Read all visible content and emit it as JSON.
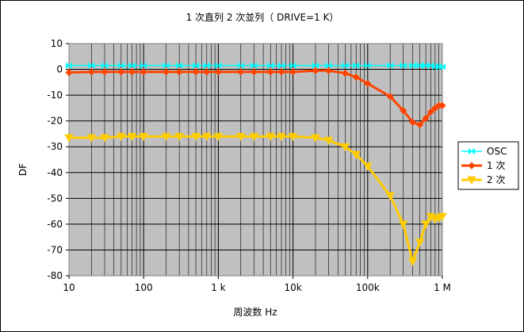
{
  "chart_data": {
    "type": "line",
    "title": "1 次直列 2 次並列（ DRIVE=1 K）",
    "xlabel": "周波数 Hz",
    "ylabel": "DF",
    "xscale": "log",
    "xlim": [
      10,
      1000000
    ],
    "ylim": [
      -80,
      10
    ],
    "yticks": [
      10,
      0,
      -10,
      -20,
      -30,
      -40,
      -50,
      -60,
      -70,
      -80
    ],
    "xticks": [
      {
        "value": 10,
        "label": "10"
      },
      {
        "value": 100,
        "label": "100"
      },
      {
        "value": 1000,
        "label": "1 k"
      },
      {
        "value": 10000,
        "label": "10k"
      },
      {
        "value": 100000,
        "label": "100k"
      },
      {
        "value": 1000000,
        "label": "1 M"
      }
    ],
    "grid": true,
    "plot_background": "#c0c0c0",
    "legend_position": "right",
    "series": [
      {
        "name": "OSC",
        "color": "#00ffff",
        "marker": "bowtie",
        "x": [
          10,
          20,
          30,
          50,
          70,
          100,
          200,
          300,
          500,
          700,
          1000,
          2000,
          3000,
          5000,
          7000,
          10000,
          20000,
          30000,
          50000,
          70000,
          100000,
          200000,
          300000,
          400000,
          500000,
          600000,
          700000,
          800000,
          900000,
          1000000
        ],
        "y": [
          1.5,
          1.5,
          1.5,
          1.5,
          1.5,
          1.5,
          1.5,
          1.5,
          1.5,
          1.5,
          1.5,
          1.5,
          1.5,
          1.5,
          1.5,
          1.5,
          1.5,
          1.5,
          1.5,
          1.5,
          1.5,
          1.5,
          1.5,
          1.5,
          1.5,
          1.5,
          1.5,
          1.2,
          1.0,
          1.0
        ]
      },
      {
        "name": "1 次",
        "color": "#ff4400",
        "marker": "diamond",
        "x": [
          10,
          20,
          30,
          50,
          70,
          100,
          200,
          300,
          500,
          700,
          1000,
          2000,
          3000,
          5000,
          7000,
          10000,
          20000,
          30000,
          50000,
          70000,
          100000,
          200000,
          300000,
          400000,
          500000,
          600000,
          700000,
          800000,
          900000,
          1000000
        ],
        "y": [
          -1.2,
          -1,
          -1,
          -1,
          -1,
          -1,
          -1,
          -1,
          -1,
          -1,
          -1,
          -1,
          -1,
          -1,
          -1,
          -1,
          -0.5,
          -0.5,
          -1.5,
          -3,
          -5.5,
          -10.5,
          -16,
          -20.5,
          -21.5,
          -19,
          -16.5,
          -15,
          -14,
          -14
        ]
      },
      {
        "name": "2 次",
        "color": "#ffcc00",
        "marker": "triangle-down",
        "x": [
          10,
          20,
          30,
          50,
          70,
          100,
          200,
          300,
          500,
          700,
          1000,
          2000,
          3000,
          5000,
          7000,
          10000,
          20000,
          30000,
          50000,
          70000,
          100000,
          200000,
          300000,
          400000,
          500000,
          600000,
          700000,
          800000,
          900000,
          1000000
        ],
        "y": [
          -26.5,
          -26.5,
          -26.5,
          -26,
          -26,
          -26,
          -26,
          -26,
          -26,
          -26,
          -26,
          -26,
          -26,
          -26,
          -26,
          -26,
          -26.5,
          -27.5,
          -30,
          -33,
          -37.5,
          -49,
          -60,
          -74.5,
          -67,
          -60,
          -57,
          -58,
          -57.5,
          -57
        ]
      }
    ]
  }
}
